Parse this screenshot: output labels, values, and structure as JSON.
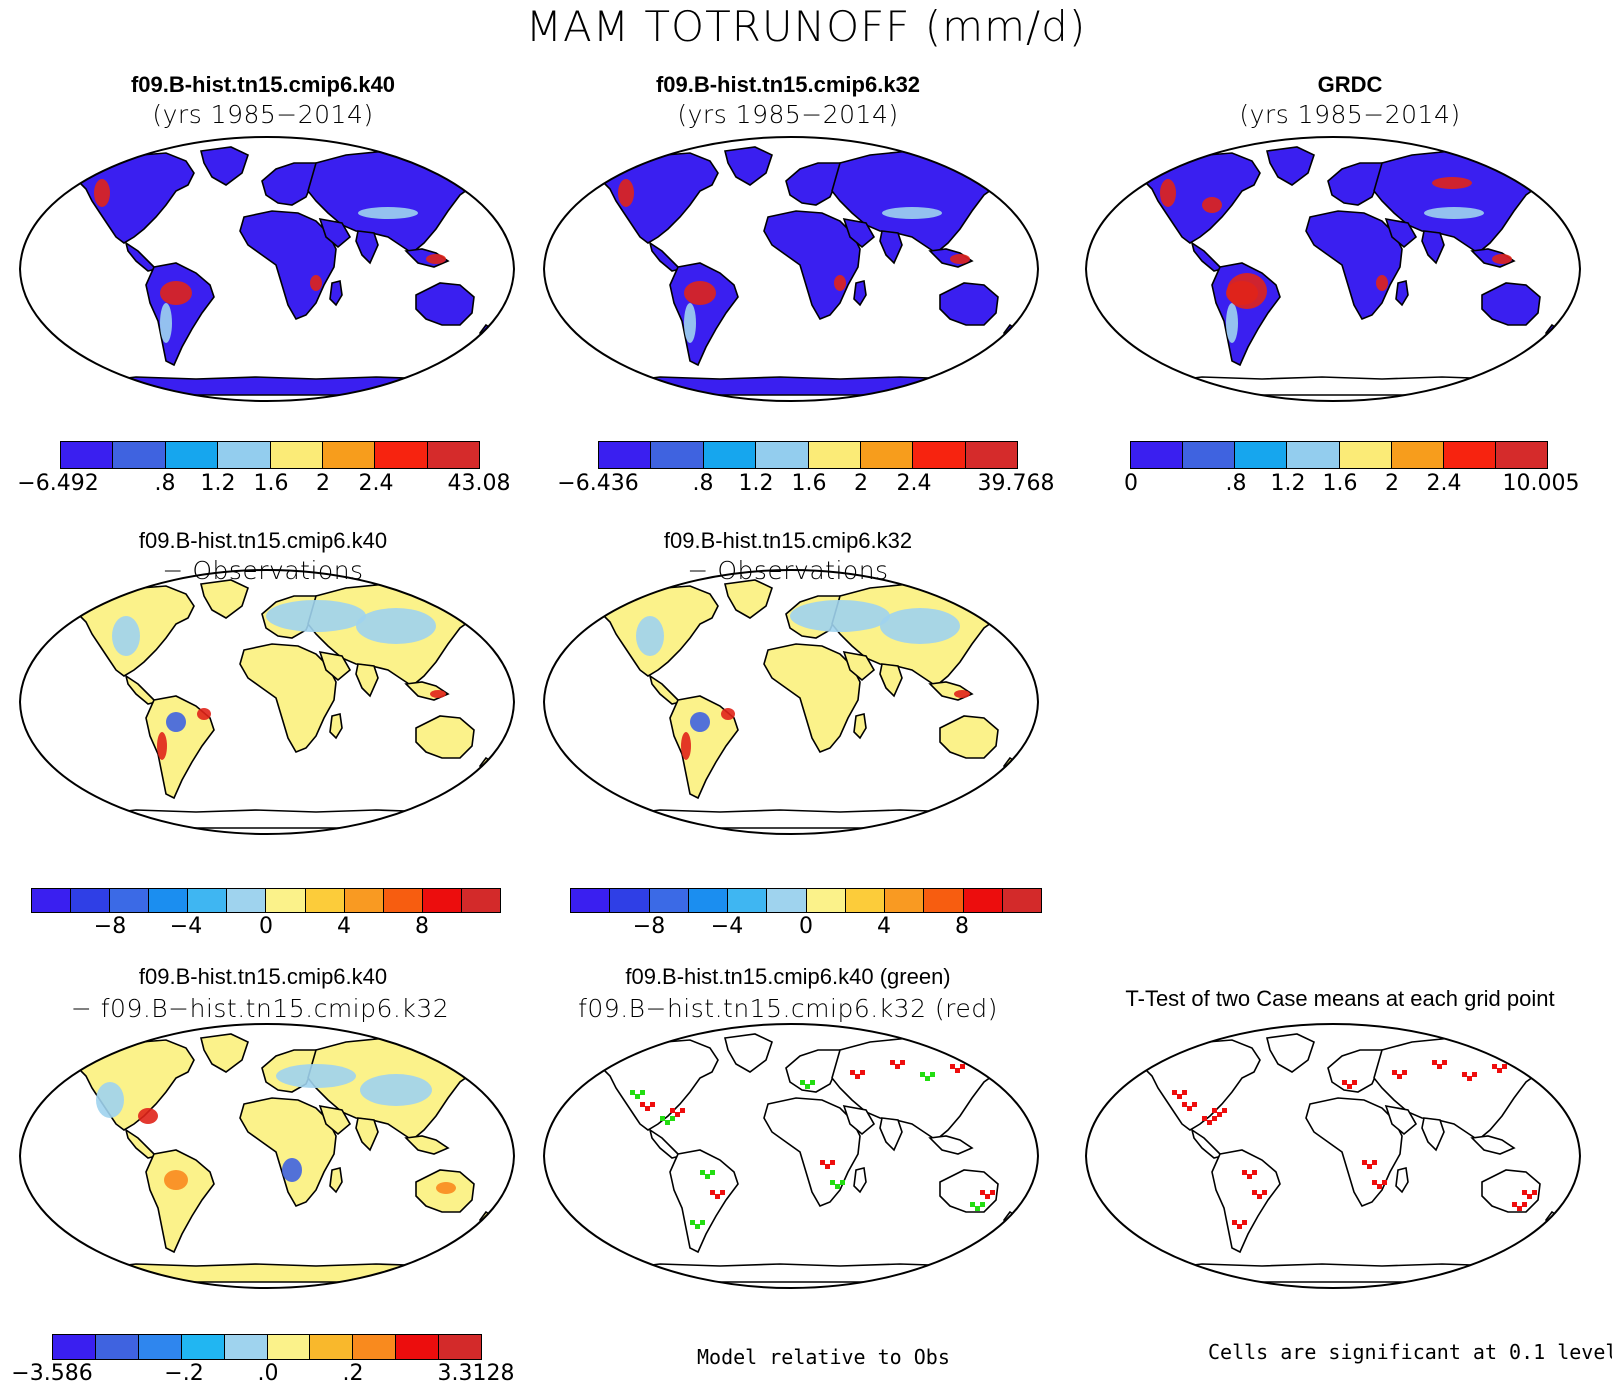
{
  "title": "MAM TOTRUNOFF (mm/d)",
  "panels": {
    "p1": {
      "line1": "f09.B-hist.tn15.cmip6.k40",
      "line2": "(yrs 1985−2014)"
    },
    "p2": {
      "line1": "f09.B-hist.tn15.cmip6.k32",
      "line2": "(yrs 1985−2014)"
    },
    "p3": {
      "line1": "GRDC",
      "line2": "(yrs 1985−2014)"
    },
    "p4": {
      "line1": "f09.B-hist.tn15.cmip6.k40",
      "line2": "− Observations"
    },
    "p5": {
      "line1": "f09.B-hist.tn15.cmip6.k32",
      "line2": "− Observations"
    },
    "p6": {
      "line1": "f09.B-hist.tn15.cmip6.k40",
      "line2": "− f09.B−hist.tn15.cmip6.k32"
    },
    "p7": {
      "line1": "f09.B-hist.tn15.cmip6.k40 (green)",
      "line2": "f09.B−hist.tn15.cmip6.k32 (red)"
    },
    "p8": {
      "line1": "T-Test of two Case means at each grid point"
    }
  },
  "colorbars": {
    "abs": {
      "colors": [
        "#3a1ff0",
        "#3f63e0",
        "#16a6ee",
        "#93cdee",
        "#fbeb77",
        "#f79d1c",
        "#f7230f",
        "#d52b2b"
      ]
    },
    "diff": {
      "colors": [
        "#3a1ff0",
        "#2f3fe6",
        "#3b6ae6",
        "#1b8ef0",
        "#3fb6f2",
        "#9fd3ee",
        "#fbf28a",
        "#fccc3a",
        "#f99a22",
        "#f75d10",
        "#ec0d0d",
        "#d32a2a"
      ]
    },
    "case": {
      "colors": [
        "#3a1ff0",
        "#3f63e0",
        "#2f86ee",
        "#21b6f2",
        "#9fd3ee",
        "#fbf28a",
        "#f9b82c",
        "#f98a1e",
        "#ec0d0d",
        "#d32a2a"
      ]
    }
  },
  "ticks": {
    "p1": [
      "−6.492",
      ".8",
      "1.2",
      "1.6",
      "2",
      "2.4",
      "43.08"
    ],
    "p2": [
      "−6.436",
      ".8",
      "1.2",
      "1.6",
      "2",
      "2.4",
      "39.768"
    ],
    "p3": [
      "0",
      ".8",
      "1.2",
      "1.6",
      "2",
      "2.4",
      "10.005"
    ],
    "p4": [
      "−8",
      "−4",
      "0",
      "4",
      "8"
    ],
    "p5": [
      "−8",
      "−4",
      "0",
      "4",
      "8"
    ],
    "p6": [
      "−3.586",
      "−.2",
      ".0",
      ".2",
      "3.3128"
    ]
  },
  "notes": {
    "model_rel": "Model relative to Obs",
    "significance": "Cells are significant at 0.1 level"
  },
  "map_colors": {
    "land_abs": "#3a1ff0",
    "land_diff": "#fbf28a",
    "land_case": "#fbf28a",
    "wet": "#e0241a",
    "mid": "#9fd3ee",
    "green": "#22dd11",
    "red": "#ee0d0d"
  }
}
